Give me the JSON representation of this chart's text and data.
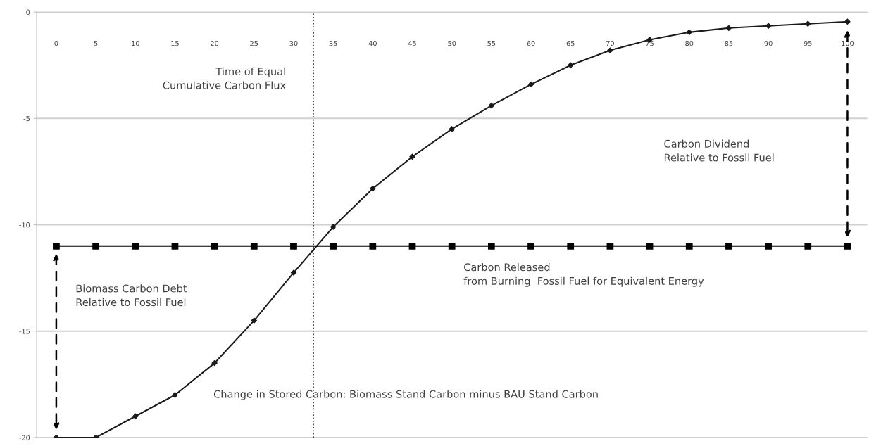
{
  "chart_data": {
    "type": "line",
    "x": [
      0,
      5,
      10,
      15,
      20,
      25,
      30,
      35,
      40,
      45,
      50,
      55,
      60,
      65,
      70,
      75,
      80,
      85,
      90,
      95,
      100
    ],
    "series": [
      {
        "name": "Change in Stored Carbon: Biomass Stand Carbon minus BAU Stand Carbon",
        "color": "#1a1a1a",
        "marker": "diamond",
        "values": [
          -20,
          -20,
          -19,
          -18,
          -16.5,
          -14.5,
          -12.25,
          -10.1,
          -8.3,
          -6.8,
          -5.5,
          -4.4,
          -3.4,
          -2.5,
          -1.8,
          -1.3,
          -0.95,
          -0.75,
          -0.65,
          -0.55,
          -0.45
        ]
      },
      {
        "name": "Carbon Released\nfrom Burning  Fossil Fuel for Equivalent Energy",
        "color": "#000000",
        "marker": "square",
        "values": [
          -11,
          -11,
          -11,
          -11,
          -11,
          -11,
          -11,
          -11,
          -11,
          -11,
          -11,
          -11,
          -11,
          -11,
          -11,
          -11,
          -11,
          -11,
          -11,
          -11,
          -11
        ]
      }
    ],
    "xlim": [
      -2.5,
      102.5
    ],
    "xticks": [
      0,
      5,
      10,
      15,
      20,
      25,
      30,
      35,
      40,
      45,
      50,
      55,
      60,
      65,
      70,
      75,
      80,
      85,
      90,
      95,
      100
    ],
    "ylim": [
      -20,
      0
    ],
    "yticks": [
      0,
      -5,
      -10,
      -15,
      -20
    ],
    "grid": "y",
    "legend": false,
    "line_style": "solid",
    "ref_lines": [
      {
        "axis": "x",
        "value": 32.5,
        "label": "Time of Equal\nCumulative Carbon Flux",
        "line_style": "dotted",
        "color": "#333333"
      }
    ],
    "annotations": [
      "Biomass Carbon Debt\nRelative to Fossil Fuel",
      "Carbon Dividend\nRelative to Fossil Fuel"
    ]
  }
}
